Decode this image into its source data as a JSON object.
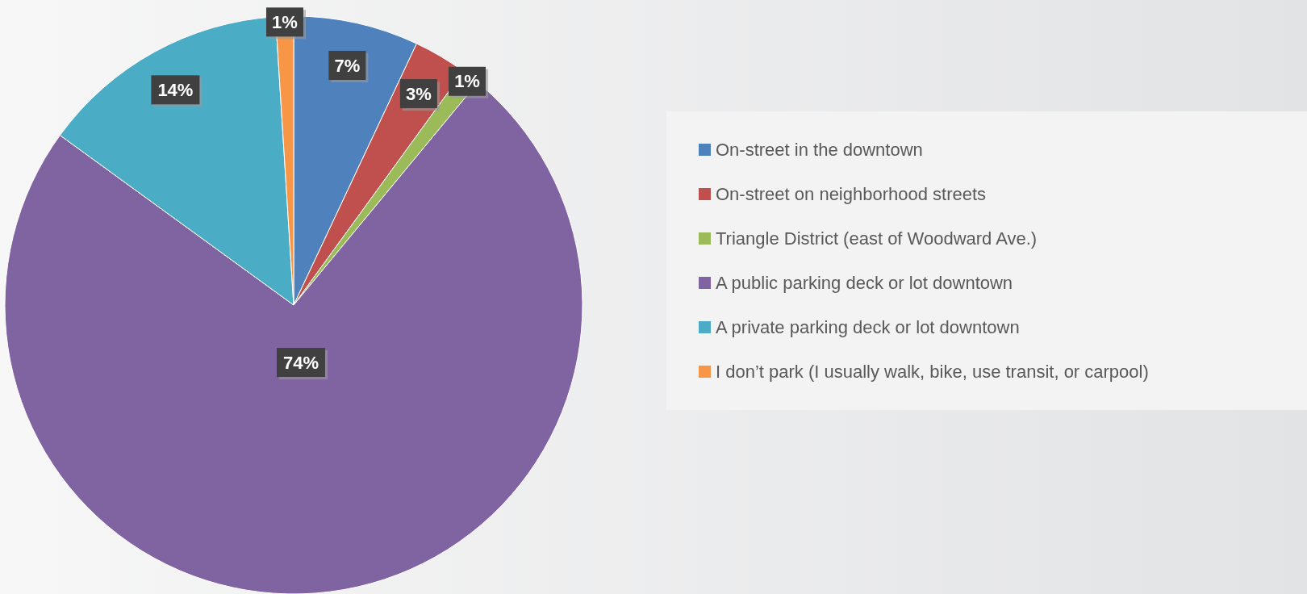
{
  "chart_data": {
    "type": "pie",
    "categories": [
      "On-street in the downtown",
      "On-street on neighborhood streets",
      "Triangle District (east of Woodward Ave.)",
      "A public parking deck or lot downtown",
      "A private parking deck or lot downtown",
      "I don’t park (I usually walk, bike, use transit, or carpool)"
    ],
    "values": [
      7,
      3,
      1,
      74,
      14,
      1
    ],
    "value_labels": [
      "7%",
      "3%",
      "1%",
      "74%",
      "14%",
      "1%"
    ],
    "colors": [
      "#4f81bd",
      "#c0504d",
      "#9bbb59",
      "#8064a2",
      "#4bacc6",
      "#f79646"
    ],
    "legend": "right"
  }
}
